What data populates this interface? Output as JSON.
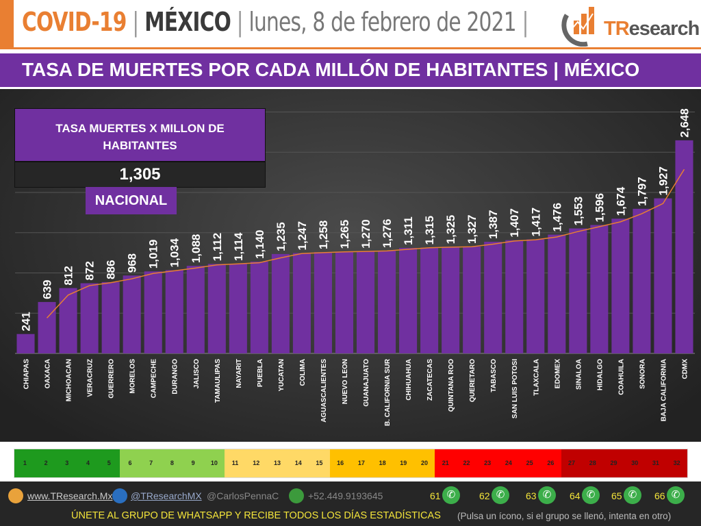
{
  "header": {
    "covid": "COVID-19",
    "sep": "|",
    "country": "MÉXICO",
    "date": "lunes, 8 de febrero de 2021",
    "logo_text_accent": "TR",
    "logo_text": "esearch"
  },
  "banner": {
    "title": "TASA DE MUERTES POR CADA MILLÓN DE HABITANTES | MÉXICO"
  },
  "infobox": {
    "title": "TASA MUERTES X MILLON DE HABITANTES",
    "value": "1,305",
    "label": "NACIONAL"
  },
  "chart_data": {
    "type": "bar",
    "title": "TASA DE MUERTES POR CADA MILLÓN DE HABITANTES | MÉXICO",
    "categories": [
      "CHIAPAS",
      "OAXACA",
      "MICHOACAN",
      "VERACRUZ",
      "GUERRERO",
      "MORELOS",
      "CAMPECHE",
      "DURANGO",
      "JALISCO",
      "TAMAULIPAS",
      "NAYARIT",
      "PUEBLA",
      "YUCATAN",
      "COLIMA",
      "AGUASCALIENTES",
      "NUEVO LEON",
      "GUANAJUATO",
      "B. CALIFORNIA SUR",
      "CHIHUAHUA",
      "ZACATECAS",
      "QUINTANA ROO",
      "QUERETARO",
      "TABASCO",
      "SAN LUIS POTOSI",
      "TLAXCALA",
      "EDOMEX",
      "SINALOA",
      "HIDALGO",
      "COAHUILA",
      "SONORA",
      "BAJA CALIFORNIA",
      "CDMX"
    ],
    "values": [
      241,
      639,
      812,
      872,
      886,
      968,
      1019,
      1034,
      1088,
      1112,
      1114,
      1140,
      1235,
      1247,
      1258,
      1265,
      1270,
      1276,
      1311,
      1315,
      1325,
      1327,
      1387,
      1407,
      1417,
      1476,
      1553,
      1596,
      1674,
      1797,
      1927,
      2648
    ],
    "labels": [
      "241",
      "639",
      "812",
      "872",
      "886",
      "968",
      "1,019",
      "1,034",
      "1,088",
      "1,112",
      "1,114",
      "1,140",
      "1,235",
      "1,247",
      "1,258",
      "1,265",
      "1,270",
      "1,276",
      "1,311",
      "1,315",
      "1,325",
      "1,327",
      "1,387",
      "1,407",
      "1,417",
      "1,476",
      "1,553",
      "1,596",
      "1,674",
      "1,797",
      "1,927",
      "2,648"
    ],
    "trendline": "2-period moving average",
    "ylim": [
      0,
      3200
    ],
    "grid": true,
    "colors": {
      "bar": "#7030a0",
      "trend": "#e97f32"
    }
  },
  "scale": {
    "numbers": [
      "1",
      "2",
      "3",
      "4",
      "5",
      "6",
      "7",
      "8",
      "9",
      "10",
      "11",
      "12",
      "13",
      "14",
      "15",
      "16",
      "17",
      "18",
      "19",
      "20",
      "21",
      "22",
      "23",
      "24",
      "25",
      "26",
      "27",
      "28",
      "29",
      "30",
      "31",
      "32"
    ],
    "colors": [
      "#1e9a1e",
      "#1e9a1e",
      "#1e9a1e",
      "#1e9a1e",
      "#1e9a1e",
      "#8fd14f",
      "#8fd14f",
      "#8fd14f",
      "#8fd14f",
      "#8fd14f",
      "#ffd966",
      "#ffd966",
      "#ffd966",
      "#ffd966",
      "#ffd966",
      "#ffc000",
      "#ffc000",
      "#ffc000",
      "#ffc000",
      "#ffc000",
      "#ff0000",
      "#ff0000",
      "#ff0000",
      "#ff0000",
      "#ff0000",
      "#ff0000",
      "#c00000",
      "#c00000",
      "#c00000",
      "#c00000",
      "#c00000",
      "#c00000"
    ]
  },
  "footer": {
    "website": "www.TResearch.Mx",
    "twitter": "@TResearchMX",
    "handle": "@CarlosPennaC",
    "phone": "+52.449.9193645",
    "groups": [
      "61",
      "62",
      "63",
      "64",
      "65",
      "66"
    ],
    "cta": "ÚNETE AL GRUPO DE WHATSAPP Y RECIBE TODOS LOS DÍAS ESTADÍSTICAS",
    "note": "(Pulsa un ícono, si el grupo se llenó, intenta en otro)"
  }
}
